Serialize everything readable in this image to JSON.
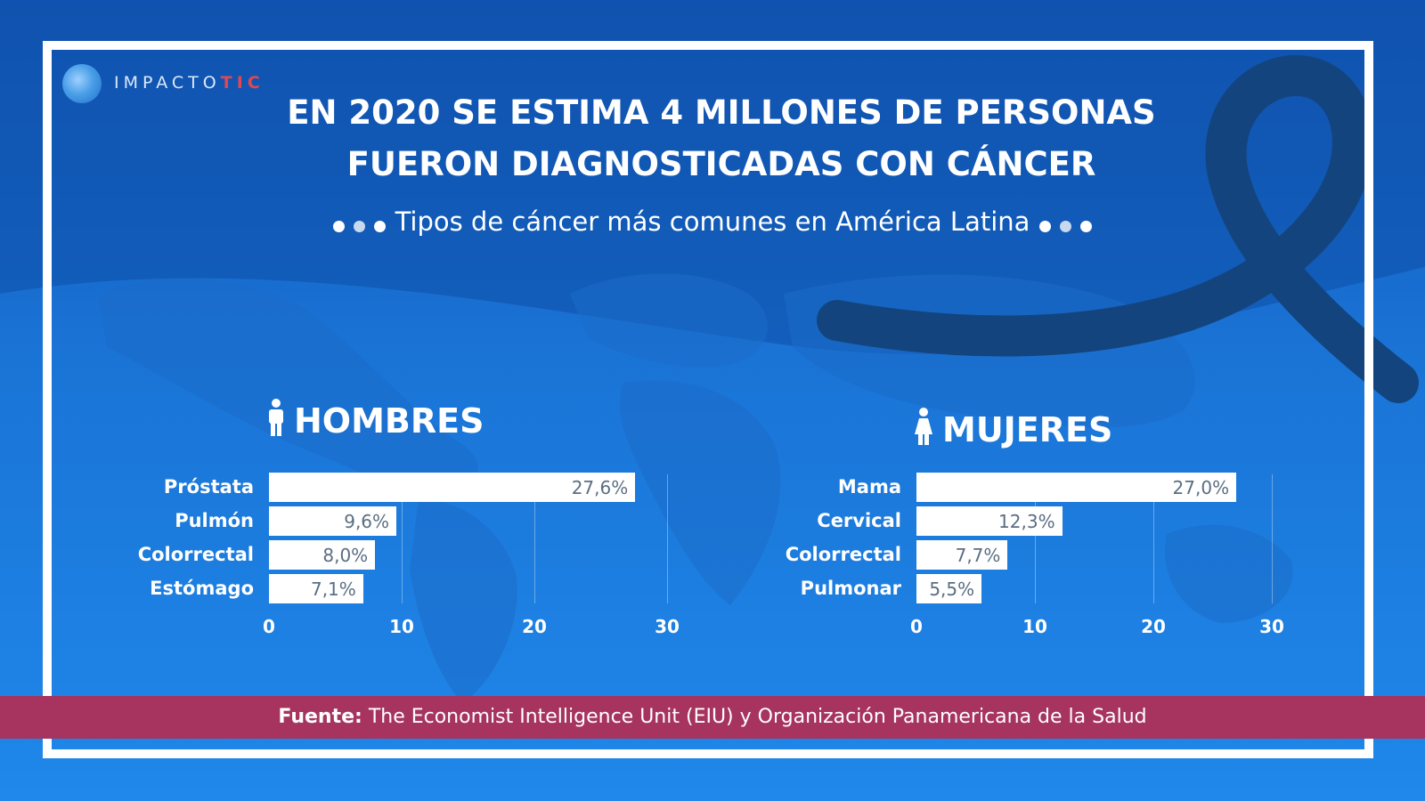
{
  "colors": {
    "background": "#1a74d6",
    "frame": "#ffffff",
    "bar": "#ffffff",
    "bar_value_text": "#5b6e82",
    "source_band": "#a6345f",
    "ribbon": "#13447e",
    "logo_accent": "#e2474e"
  },
  "logo": {
    "text": "IMPACTO",
    "accent": "TIC"
  },
  "header": {
    "title_line1": "EN 2020 SE ESTIMA 4 MILLONES DE PERSONAS",
    "title_line2": "FUERON DIAGNOSTICADAS CON CÁNCER",
    "subtitle": "Tipos de cáncer más comunes en América Latina"
  },
  "icons": [
    "male-person-icon",
    "female-person-icon",
    "awareness-ribbon-icon",
    "world-map"
  ],
  "chart_data": [
    {
      "type": "bar",
      "orientation": "horizontal",
      "title": "HOMBRES",
      "categories": [
        "Próstata",
        "Pulmón",
        "Colorrectal",
        "Estómago"
      ],
      "values": [
        27.6,
        9.6,
        8.0,
        7.1
      ],
      "value_labels": [
        "27,6%",
        "9,6%",
        "8,0%",
        "7,1%"
      ],
      "xlim": [
        0,
        30
      ],
      "xticks": [
        "0",
        "10",
        "20",
        "30"
      ],
      "grid": true
    },
    {
      "type": "bar",
      "orientation": "horizontal",
      "title": "MUJERES",
      "categories": [
        "Mama",
        "Cervical",
        "Colorrectal",
        "Pulmonar"
      ],
      "values": [
        27.0,
        12.3,
        7.7,
        5.5
      ],
      "value_labels": [
        "27,0%",
        "12,3%",
        "7,7%",
        "5,5%"
      ],
      "xlim": [
        0,
        30
      ],
      "xticks": [
        "0",
        "10",
        "20",
        "30"
      ],
      "grid": true
    }
  ],
  "source": {
    "label": "Fuente:",
    "text": "The Economist Intelligence Unit (EIU)  y Organización Panamericana de la Salud"
  }
}
